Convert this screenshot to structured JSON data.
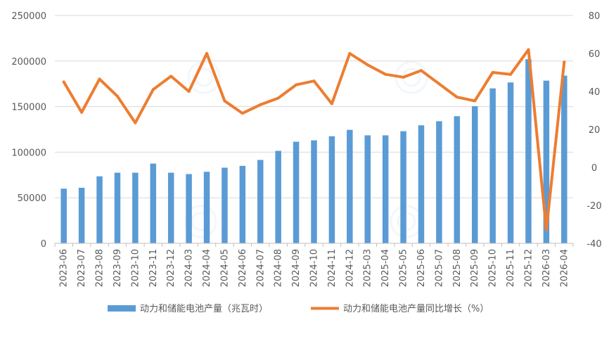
{
  "chart_data": {
    "type": "bar+line",
    "categories": [
      "2023-06",
      "2023-07",
      "2023-08",
      "2023-09",
      "2023-10",
      "2023-11",
      "2023-12",
      "2024-03",
      "2024-04",
      "2024-05",
      "2024-06",
      "2024-07",
      "2024-08",
      "2024-09",
      "2024-10",
      "2024-11",
      "2024-12",
      "2025-03",
      "2025-04",
      "2025-05",
      "2025-06",
      "2025-07",
      "2025-08",
      "2025-09",
      "2025-10",
      "2025-11",
      "2025-12",
      "2026-03",
      "2026-04"
    ],
    "series": [
      {
        "name": "动力和储能电池产量（兆瓦时）",
        "type": "bar",
        "axis": "left",
        "color": "#5b9bd5",
        "values": [
          60000,
          61000,
          73500,
          77500,
          77500,
          87500,
          77500,
          76000,
          78500,
          83000,
          85000,
          91500,
          101500,
          111500,
          113000,
          117500,
          124500,
          118500,
          118500,
          123000,
          129500,
          134000,
          139500,
          150500,
          170000,
          176500,
          202000,
          178500,
          184000
        ]
      },
      {
        "name": "动力和储能电池产量同比增长（%）",
        "type": "line",
        "axis": "right",
        "color": "#ed7d31",
        "values": [
          45,
          29,
          46.5,
          37.5,
          23.5,
          41,
          48,
          40,
          60,
          35,
          28.5,
          33,
          36.5,
          43.5,
          45.5,
          33.5,
          60,
          54,
          49,
          47.5,
          51,
          44,
          37,
          35,
          50,
          49,
          62,
          -33,
          55.5
        ]
      }
    ],
    "left_axis": {
      "min": 0,
      "max": 250000,
      "step": 50000,
      "ticks": [
        "0",
        "50000",
        "100000",
        "150000",
        "200000",
        "250000"
      ]
    },
    "right_axis": {
      "min": -40,
      "max": 80,
      "step": 20,
      "ticks": [
        "-40",
        "-20",
        "0",
        "20",
        "40",
        "60",
        "80"
      ]
    },
    "grid": true,
    "legend_position": "bottom"
  }
}
